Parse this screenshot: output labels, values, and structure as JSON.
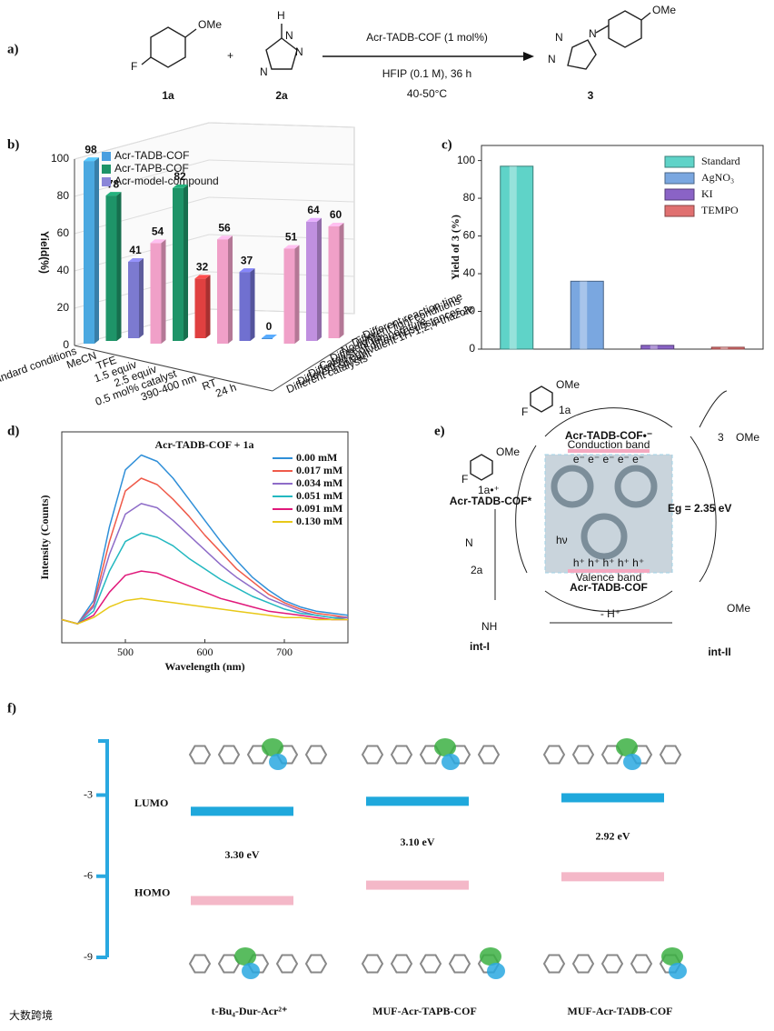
{
  "panel_labels": [
    "a)",
    "b)",
    "c)",
    "d)",
    "e)",
    "f)"
  ],
  "scheme": {
    "reactant1_label": "1a",
    "reactant2_label": "2a",
    "product_label": "3",
    "plus": "+",
    "reagent": "Acr-TADB-COF (1 mol%)",
    "conditions": "HFIP (0.1 M), 36 h",
    "temperature": "40-50°C",
    "atoms": {
      "ome": "OMe",
      "f": "F",
      "h": "H",
      "n": "N",
      "nh": "NH"
    }
  },
  "mechanism": {
    "radical_anion": "Acr-TADB-COF•⁻",
    "conduction_band": "Conduction band",
    "band_gap": "Eg = 2.35 eV",
    "valence_band": "Valence band",
    "ground_state": "Acr-TADB-COF",
    "excited_state": "Acr-TADB-COF*",
    "light": "hν",
    "substrate": "1a",
    "radical_cation": "1a•⁺",
    "triazole": "2a",
    "product": "3",
    "intermediate1": "int-I",
    "intermediate2": "int-II",
    "deprotonation": "- H⁺",
    "electrons": "e⁻ e⁻ e⁻ e⁻ e⁻",
    "holes": "h⁺ h⁺ h⁺ h⁺ h⁺"
  },
  "watermark": "大数跨境",
  "chart_data": [
    {
      "type": "bar3d",
      "y_label": "Yield(%)",
      "ylim": [
        0,
        100
      ],
      "yticks": [
        0,
        20,
        40,
        60,
        80,
        100
      ],
      "legend": [
        {
          "name": "Acr-TADB-COF",
          "color": "#4a9fe0"
        },
        {
          "name": "Acr-TAPB-COF",
          "color": "#1e9468"
        },
        {
          "name": "Acr-model-compound",
          "color": "#8a86d8"
        }
      ],
      "bars": {
        "values": [
          98,
          78,
          41,
          54,
          82,
          32,
          56,
          37,
          0,
          51,
          64,
          60
        ],
        "colors": [
          "#4aa8e0",
          "#1e9468",
          "#7c7ad0",
          "#f0a0c8",
          "#1e9468",
          "#e04040",
          "#f0a0c8",
          "#7070d0",
          "#4a8fd6",
          "#f0a0c8",
          "#c090e0",
          "#f0a0c8"
        ]
      },
      "x_labels": [
        "Standard conditions",
        "MeCN",
        "TFE",
        "1.5 equiv",
        "2.5 equiv",
        "0.5 mol% catalyst",
        "390-400 nm",
        "RT",
        "24 h"
      ],
      "depth_labels": [
        "Different reaction time",
        "Different light conditions",
        "No lights",
        "Different temperature",
        "Catalyst of different substances",
        "Different equivalent 1H-1,2,4-triazole",
        "Different solvent",
        "Different catalysts"
      ]
    },
    {
      "type": "bar",
      "y_label": "Yield of 3 (%)",
      "ylim": [
        0,
        108
      ],
      "yticks": [
        0,
        20,
        40,
        60,
        80,
        100
      ],
      "series": [
        {
          "name": "Standard",
          "color": "#5fd3c8",
          "values": [
            97
          ]
        },
        {
          "name": "AgNO₃",
          "color": "#7aa7e0",
          "values": [
            36
          ]
        },
        {
          "name": "KI",
          "color": "#8a63c6",
          "values": [
            2
          ]
        },
        {
          "name": "TEMPO",
          "color": "#e07070",
          "values": [
            1
          ]
        }
      ]
    },
    {
      "type": "line",
      "title": "Acr-TADB-COF + 1a",
      "x_label": "Wavelength (nm)",
      "y_label": "Intensity (Counts)",
      "x": [
        420,
        440,
        460,
        480,
        500,
        520,
        540,
        560,
        580,
        600,
        620,
        640,
        660,
        680,
        700,
        720,
        740,
        760,
        780
      ],
      "xlim": [
        420,
        780
      ],
      "xticks": [
        500,
        600,
        700
      ],
      "ylim": [
        0,
        100
      ],
      "series": [
        {
          "name": "0.00  mM",
          "color": "#2f8fd8",
          "values": [
            11,
            9,
            20,
            55,
            82,
            89,
            86,
            78,
            68,
            58,
            48,
            39,
            31,
            25,
            20,
            17,
            15,
            14,
            13
          ]
        },
        {
          "name": "0.017 mM",
          "color": "#ef5a4a",
          "values": [
            11,
            9,
            18,
            48,
            72,
            78,
            75,
            68,
            60,
            51,
            43,
            35,
            29,
            23,
            19,
            16,
            14,
            13,
            12
          ]
        },
        {
          "name": "0.034 mM",
          "color": "#8e6cc8",
          "values": [
            11,
            9,
            17,
            42,
            61,
            66,
            64,
            58,
            51,
            44,
            37,
            31,
            26,
            21,
            18,
            15,
            13,
            12,
            12
          ]
        },
        {
          "name": "0.051 mM",
          "color": "#22b8c0",
          "values": [
            11,
            9,
            15,
            34,
            48,
            52,
            50,
            46,
            40,
            35,
            30,
            26,
            22,
            19,
            16,
            14,
            13,
            12,
            11
          ]
        },
        {
          "name": "0.091 mM",
          "color": "#e0187a",
          "values": [
            11,
            9,
            13,
            24,
            32,
            34,
            33,
            30,
            27,
            24,
            21,
            19,
            17,
            15,
            14,
            13,
            12,
            11,
            11
          ]
        },
        {
          "name": "0.130 mM",
          "color": "#e8c818",
          "values": [
            11,
            9,
            12,
            17,
            20,
            21,
            20,
            19,
            18,
            17,
            16,
            15,
            14,
            13,
            12,
            12,
            11,
            11,
            11
          ]
        }
      ]
    },
    {
      "type": "energy",
      "ylim": [
        -9,
        -1
      ],
      "yticks": [
        -3,
        -6,
        -9
      ],
      "categories": [
        "t-Bu₄-Dur-Acr²⁺",
        "MUF-Acr-TAPB-COF",
        "MUF-Acr-TADB-COF"
      ],
      "series": [
        {
          "name": "LUMO",
          "color": "#1fa8dc",
          "values": [
            -3.6,
            -3.23,
            -3.1
          ]
        },
        {
          "name": "HOMO",
          "color": "#f4b8c8",
          "values": [
            -6.9,
            -6.33,
            -6.02
          ]
        }
      ],
      "gap_labels": [
        "3.30 eV",
        "3.10 eV",
        "2.92 eV"
      ]
    }
  ]
}
